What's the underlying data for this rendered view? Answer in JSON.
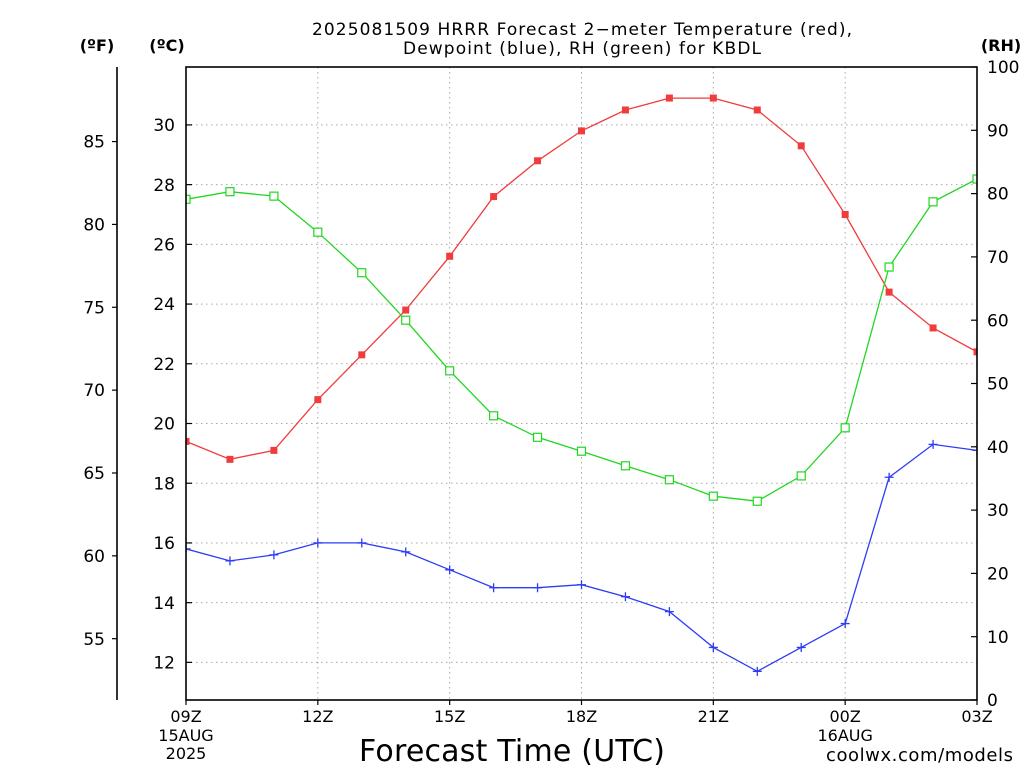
{
  "credit": "coolwx.com/models",
  "colors": {
    "background": "#ffffff",
    "axis": "#000000",
    "grid": "#a8a8a8",
    "credit": "#e8403c"
  },
  "chart_data": {
    "type": "line",
    "title": [
      "2025081509 HRRR Forecast 2−meter Temperature (red),",
      "Dewpoint (blue), RH (green) for KBDL"
    ],
    "xlabel": "Forecast Time (UTC)",
    "xlim": [
      "2025-08-15T09:00Z",
      "2025-08-16T03:00Z"
    ],
    "x_ticks": [
      {
        "at": "2025-08-15T09:00Z",
        "label": "09Z",
        "date": "15AUG",
        "year": "2025"
      },
      {
        "at": "2025-08-15T12:00Z",
        "label": "12Z"
      },
      {
        "at": "2025-08-15T15:00Z",
        "label": "15Z"
      },
      {
        "at": "2025-08-15T18:00Z",
        "label": "18Z"
      },
      {
        "at": "2025-08-15T21:00Z",
        "label": "21Z"
      },
      {
        "at": "2025-08-16T00:00Z",
        "label": "00Z",
        "date": "16AUG"
      },
      {
        "at": "2025-08-16T03:00Z",
        "label": "03Z"
      }
    ],
    "y_left": {
      "label": "(ºC)",
      "ticks": [
        12,
        14,
        16,
        18,
        20,
        22,
        24,
        26,
        28,
        30
      ],
      "ylim": [
        10.74,
        31.94
      ]
    },
    "y_left_outer": {
      "label": "(ºF)",
      "ticks": [
        55,
        60,
        65,
        70,
        75,
        80,
        85
      ],
      "ylim": [
        51.3,
        89.5
      ]
    },
    "y_right": {
      "label": "(RH)",
      "ticks": [
        0,
        10,
        20,
        30,
        40,
        50,
        60,
        70,
        80,
        90,
        100
      ],
      "ylim": [
        0,
        100
      ]
    },
    "grid": true,
    "x": [
      "2025-08-15T09:00Z",
      "2025-08-15T10:00Z",
      "2025-08-15T11:00Z",
      "2025-08-15T12:00Z",
      "2025-08-15T13:00Z",
      "2025-08-15T14:00Z",
      "2025-08-15T15:00Z",
      "2025-08-15T16:00Z",
      "2025-08-15T17:00Z",
      "2025-08-15T18:00Z",
      "2025-08-15T19:00Z",
      "2025-08-15T20:00Z",
      "2025-08-15T21:00Z",
      "2025-08-15T22:00Z",
      "2025-08-15T23:00Z",
      "2025-08-16T00:00Z",
      "2025-08-16T01:00Z",
      "2025-08-16T02:00Z",
      "2025-08-16T03:00Z"
    ],
    "series": [
      {
        "name": "Temperature",
        "color": "#f03c3c",
        "y_axis": "left",
        "marker": "filled square",
        "values": [
          19.4,
          18.8,
          19.1,
          20.8,
          22.3,
          23.8,
          25.6,
          27.6,
          28.8,
          29.8,
          30.5,
          30.9,
          30.9,
          30.5,
          29.3,
          27.0,
          24.4,
          23.2,
          22.4
        ]
      },
      {
        "name": "Dewpoint",
        "color": "#2d3cf5",
        "y_axis": "left",
        "marker": "plus",
        "values": [
          15.8,
          15.4,
          15.6,
          16.0,
          16.0,
          15.7,
          15.1,
          14.5,
          14.5,
          14.6,
          14.2,
          13.7,
          12.5,
          11.7,
          12.5,
          13.3,
          18.2,
          19.3,
          19.1
        ]
      },
      {
        "name": "RH",
        "color": "#22d622",
        "y_axis": "right",
        "marker": "open square",
        "values": [
          79.1,
          80.3,
          79.6,
          73.9,
          67.5,
          60.0,
          52.0,
          44.9,
          41.5,
          39.3,
          37.0,
          34.8,
          32.2,
          31.4,
          35.4,
          43.0,
          68.4,
          78.7,
          82.3
        ]
      }
    ]
  }
}
